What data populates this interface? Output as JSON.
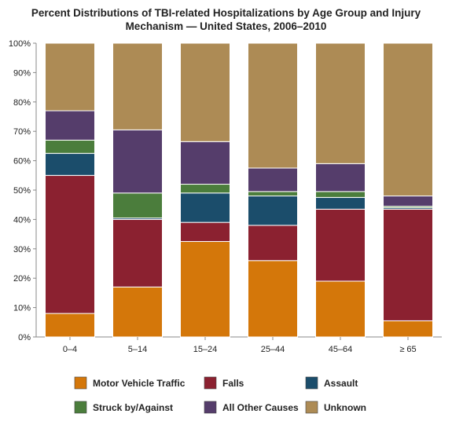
{
  "chart_data": {
    "type": "bar",
    "stacked": true,
    "title_lines": [
      "Percent Distributions of TBI-related Hospitalizations by Age Group and Injury",
      "Mechanism — United States, 2006–2010"
    ],
    "xlabel": "",
    "ylabel": "",
    "ylim": [
      0,
      100
    ],
    "y_ticks": [
      "0%",
      "10%",
      "20%",
      "30%",
      "40%",
      "50%",
      "60%",
      "70%",
      "80%",
      "90%",
      "100%"
    ],
    "categories": [
      "0–4",
      "5–14",
      "15–24",
      "25–44",
      "45–64",
      "≥ 65"
    ],
    "series": [
      {
        "name": "Motor Vehicle Traffic",
        "color": "#d4770a",
        "values": [
          8,
          17,
          32.5,
          26,
          19,
          5.5
        ]
      },
      {
        "name": "Falls",
        "color": "#8b2130",
        "values": [
          47,
          23,
          6.5,
          12,
          24.5,
          38
        ]
      },
      {
        "name": "Assault",
        "color": "#1b4d6b",
        "values": [
          7.5,
          0.5,
          10,
          10,
          4,
          0.5
        ]
      },
      {
        "name": "Struck by/Against",
        "color": "#4b7d3c",
        "values": [
          4.5,
          8.5,
          3,
          1.5,
          2,
          0.5
        ]
      },
      {
        "name": "All Other Causes",
        "color": "#553d6b",
        "values": [
          10,
          21.5,
          14.5,
          8,
          9.5,
          3.5
        ]
      },
      {
        "name": "Unknown",
        "color": "#ad8b55",
        "values": [
          23,
          29.5,
          33.5,
          42.5,
          41,
          52
        ]
      }
    ],
    "grid": false,
    "legend_position": "bottom"
  }
}
